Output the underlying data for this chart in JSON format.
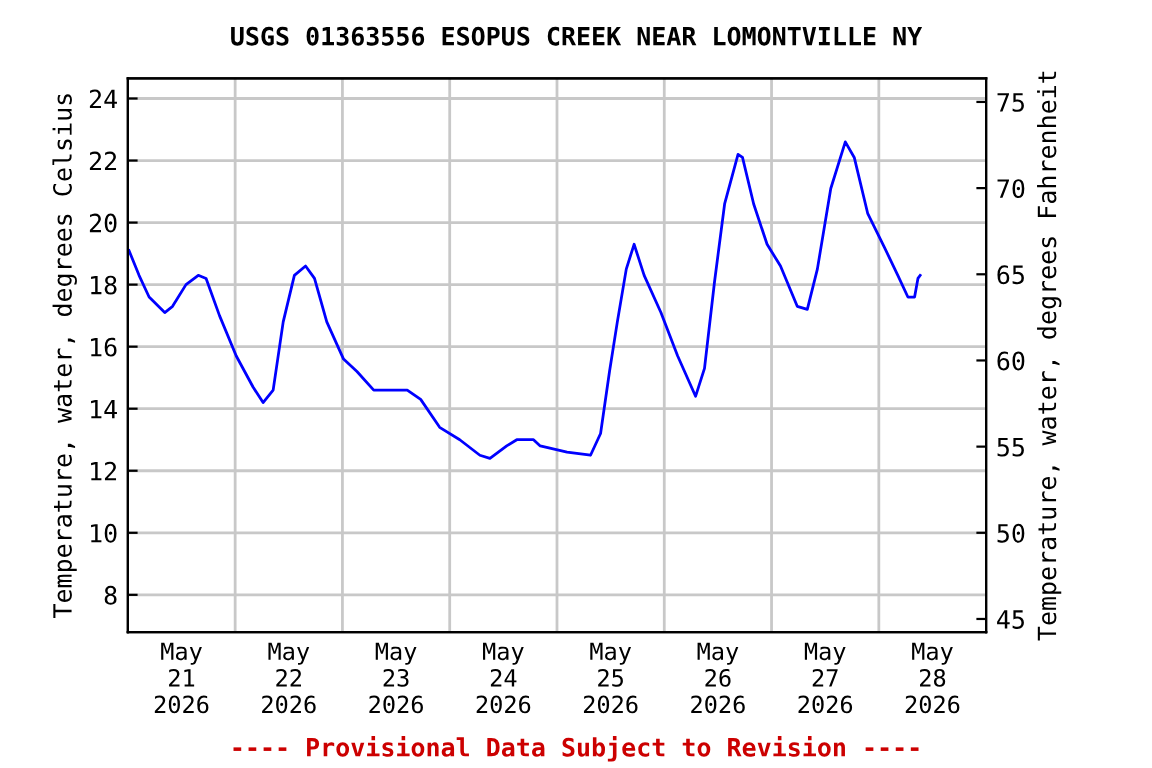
{
  "chart_data": {
    "type": "line",
    "title": "USGS 01363556 ESOPUS CREEK NEAR LOMONTVILLE NY",
    "ylabel": "Temperature, water, degrees Celsius",
    "y2label": "Temperature, water, degrees Fahrenheit",
    "annotations": [
      "---- Provisional Data Subject to Revision ----"
    ],
    "x": [
      "2026-05-21T00:15",
      "2026-05-21T02:30",
      "2026-05-21T04:45",
      "2026-05-21T08:15",
      "2026-05-21T10:00",
      "2026-05-21T13:00",
      "2026-05-21T15:45",
      "2026-05-21T17:30",
      "2026-05-21T20:30",
      "2026-05-22T00:15",
      "2026-05-22T04:00",
      "2026-05-22T06:15",
      "2026-05-22T08:30",
      "2026-05-22T10:45",
      "2026-05-22T13:15",
      "2026-05-22T15:45",
      "2026-05-22T17:45",
      "2026-05-22T20:30",
      "2026-05-23T00:15",
      "2026-05-23T03:15",
      "2026-05-23T07:00",
      "2026-05-23T14:30",
      "2026-05-23T17:30",
      "2026-05-23T21:45",
      "2026-05-24T02:15",
      "2026-05-24T06:45",
      "2026-05-24T09:00",
      "2026-05-24T12:45",
      "2026-05-24T15:00",
      "2026-05-24T18:45",
      "2026-05-24T20:15",
      "2026-05-25T02:15",
      "2026-05-25T07:30",
      "2026-05-25T09:45",
      "2026-05-25T11:45",
      "2026-05-25T13:30",
      "2026-05-25T15:30",
      "2026-05-25T17:15",
      "2026-05-25T19:30",
      "2026-05-25T23:15",
      "2026-05-26T03:00",
      "2026-05-26T07:00",
      "2026-05-26T09:00",
      "2026-05-26T11:15",
      "2026-05-26T13:30",
      "2026-05-26T16:30",
      "2026-05-26T17:30",
      "2026-05-26T20:00",
      "2026-05-26T23:00",
      "2026-05-27T02:00",
      "2026-05-27T05:45",
      "2026-05-27T08:00",
      "2026-05-27T10:15",
      "2026-05-27T13:15",
      "2026-05-27T16:30",
      "2026-05-27T18:30",
      "2026-05-27T21:30",
      "2026-05-28T01:15",
      "2026-05-28T04:15",
      "2026-05-28T06:30",
      "2026-05-28T08:00",
      "2026-05-28T08:45",
      "2026-05-28T09:15"
    ],
    "series": [
      {
        "color": "#0000ff",
        "values": [
          19.1,
          18.3,
          17.6,
          17.1,
          17.3,
          18.0,
          18.3,
          18.2,
          17.0,
          15.7,
          14.7,
          14.2,
          14.6,
          16.8,
          18.3,
          18.6,
          18.2,
          16.8,
          15.6,
          15.2,
          14.6,
          14.6,
          14.3,
          13.4,
          13.0,
          12.5,
          12.4,
          12.8,
          13.0,
          13.0,
          12.8,
          12.6,
          12.5,
          13.2,
          15.2,
          16.8,
          18.5,
          19.3,
          18.3,
          17.1,
          15.7,
          14.4,
          15.3,
          18.1,
          20.6,
          22.2,
          22.1,
          20.6,
          19.3,
          18.6,
          17.3,
          17.2,
          18.5,
          21.1,
          22.6,
          22.1,
          20.3,
          19.2,
          18.3,
          17.6,
          17.6,
          18.2,
          18.3
        ]
      }
    ],
    "xlim": [
      "2026-05-21T00:00",
      "2026-05-29T00:00"
    ],
    "xticks": [
      {
        "value": "2026-05-21T12:00",
        "label": "May\n21\n2026"
      },
      {
        "value": "2026-05-22T12:00",
        "label": "May\n22\n2026"
      },
      {
        "value": "2026-05-23T12:00",
        "label": "May\n23\n2026"
      },
      {
        "value": "2026-05-24T12:00",
        "label": "May\n24\n2026"
      },
      {
        "value": "2026-05-25T12:00",
        "label": "May\n25\n2026"
      },
      {
        "value": "2026-05-26T12:00",
        "label": "May\n26\n2026"
      },
      {
        "value": "2026-05-27T12:00",
        "label": "May\n27\n2026"
      },
      {
        "value": "2026-05-28T12:00",
        "label": "May\n28\n2026"
      },
      {
        "value": "2026-05-22T00:00",
        "label": null
      },
      {
        "value": "2026-05-23T00:00",
        "label": null
      },
      {
        "value": "2026-05-24T00:00",
        "label": null
      },
      {
        "value": "2026-05-25T00:00",
        "label": null
      },
      {
        "value": "2026-05-26T00:00",
        "label": null
      },
      {
        "value": "2026-05-27T00:00",
        "label": null
      },
      {
        "value": "2026-05-28T00:00",
        "label": null
      }
    ],
    "ylim": [
      6.8,
      24.65
    ],
    "yticks": [
      8,
      10,
      12,
      14,
      16,
      18,
      20,
      22,
      24
    ],
    "y2lim": [
      44.24,
      76.37
    ],
    "y2ticks": [
      45,
      50,
      55,
      60,
      65,
      70,
      75
    ],
    "grid": true,
    "legend": false,
    "marker": "none",
    "line_style": "solid"
  }
}
